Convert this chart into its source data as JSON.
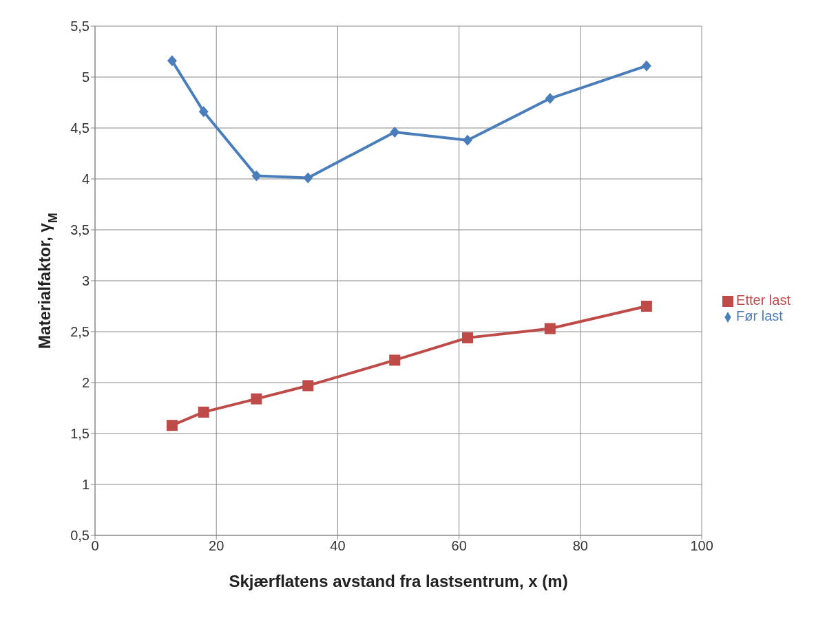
{
  "chart_data": {
    "type": "line",
    "xlabel": "Skjærflatens avstand fra lastsentrum, x (m)",
    "ylabel": "Materialfaktor, γ$_{M}$",
    "xlim": [
      0,
      100
    ],
    "xticks": [
      0,
      20,
      40,
      60,
      80,
      100
    ],
    "ylim": [
      0.5,
      5.5
    ],
    "yticks": [
      {
        "value": 0.5,
        "label": "0,5"
      },
      1,
      {
        "value": 1.5,
        "label": "1,5"
      },
      2,
      {
        "value": 2.5,
        "label": "2,5"
      },
      3,
      {
        "value": 3.5,
        "label": "3,5"
      },
      4,
      {
        "value": 4.5,
        "label": "4,5"
      },
      5,
      {
        "value": 5.5,
        "label": "5,5"
      }
    ],
    "grid": true,
    "legend": "right",
    "line_style": "solid",
    "x": [
      12.7,
      17.9,
      26.6,
      35.1,
      49.4,
      61.4,
      75.0,
      90.9
    ],
    "series": [
      {
        "name": "Før last",
        "color": "#4a7ebb",
        "marker": "diamond",
        "values": [
          5.16,
          4.66,
          4.03,
          4.01,
          4.46,
          4.38,
          4.79,
          5.11
        ]
      },
      {
        "name": "Etter last",
        "color": "#be4b48",
        "marker": "square",
        "values": [
          1.58,
          1.71,
          1.84,
          1.97,
          2.22,
          2.44,
          2.53,
          2.75
        ]
      }
    ]
  }
}
